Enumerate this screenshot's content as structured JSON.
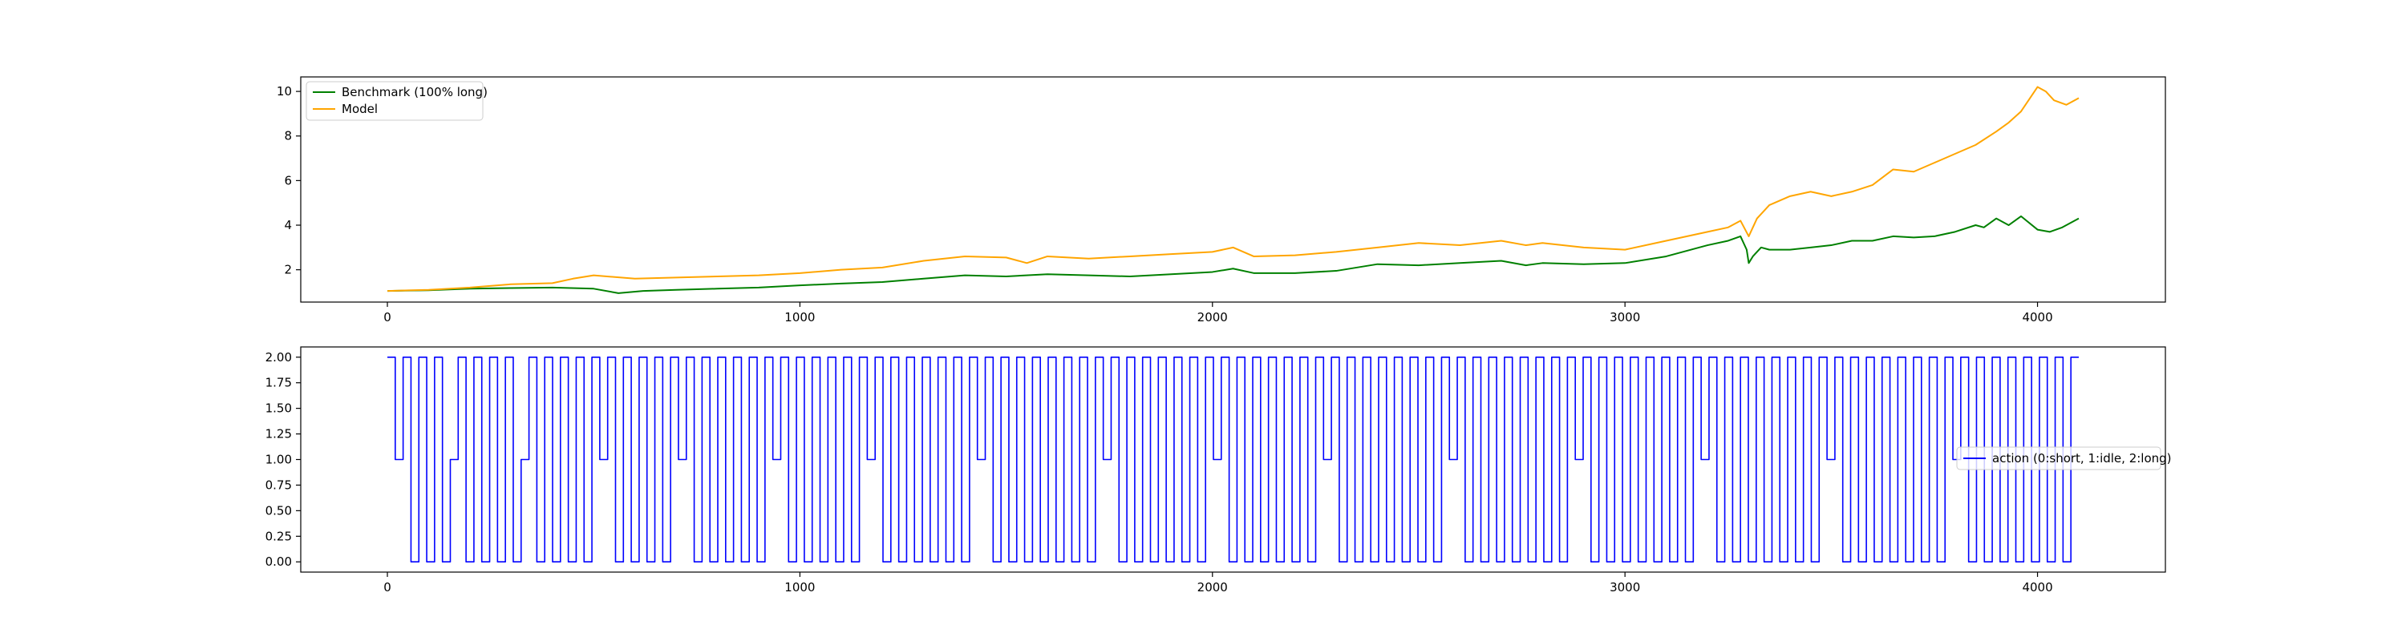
{
  "chart_data": [
    {
      "type": "line",
      "title": "",
      "xlabel": "",
      "ylabel": "",
      "xlim": [
        -210,
        4310
      ],
      "ylim": [
        0.55,
        10.65
      ],
      "xticks": [
        0,
        1000,
        2000,
        3000,
        4000
      ],
      "xtick_labels": [
        "0",
        "1000",
        "2000",
        "3000",
        "4000"
      ],
      "yticks": [
        2,
        4,
        6,
        8,
        10
      ],
      "ytick_labels": [
        "2",
        "4",
        "6",
        "8",
        "10"
      ],
      "grid": false,
      "legend_position": "upper left",
      "series": [
        {
          "name": "Benchmark (100% long)",
          "color": "#008000",
          "x": [
            0,
            100,
            200,
            300,
            400,
            500,
            560,
            620,
            700,
            800,
            900,
            1000,
            1100,
            1200,
            1300,
            1400,
            1500,
            1600,
            1700,
            1800,
            1900,
            2000,
            2050,
            2100,
            2200,
            2300,
            2400,
            2500,
            2600,
            2700,
            2760,
            2800,
            2900,
            3000,
            3100,
            3200,
            3250,
            3280,
            3295,
            3300,
            3310,
            3330,
            3350,
            3400,
            3450,
            3500,
            3550,
            3600,
            3650,
            3700,
            3750,
            3800,
            3850,
            3870,
            3900,
            3930,
            3960,
            4000,
            4030,
            4060,
            4100
          ],
          "values": [
            1.05,
            1.08,
            1.15,
            1.18,
            1.2,
            1.15,
            0.95,
            1.05,
            1.1,
            1.15,
            1.2,
            1.3,
            1.38,
            1.45,
            1.6,
            1.75,
            1.7,
            1.8,
            1.75,
            1.7,
            1.8,
            1.9,
            2.05,
            1.85,
            1.85,
            1.95,
            2.25,
            2.2,
            2.3,
            2.4,
            2.2,
            2.3,
            2.25,
            2.3,
            2.6,
            3.1,
            3.3,
            3.5,
            2.9,
            2.3,
            2.6,
            3.0,
            2.9,
            2.9,
            3.0,
            3.1,
            3.3,
            3.3,
            3.5,
            3.45,
            3.5,
            3.7,
            4.0,
            3.9,
            4.3,
            4.0,
            4.4,
            3.8,
            3.7,
            3.9,
            4.3
          ]
        },
        {
          "name": "Model",
          "color": "#FFA500",
          "x": [
            0,
            100,
            200,
            300,
            400,
            450,
            500,
            600,
            700,
            800,
            900,
            1000,
            1100,
            1200,
            1300,
            1400,
            1500,
            1550,
            1600,
            1700,
            1800,
            1900,
            2000,
            2050,
            2100,
            2200,
            2300,
            2400,
            2500,
            2600,
            2700,
            2760,
            2800,
            2900,
            3000,
            3100,
            3200,
            3250,
            3280,
            3300,
            3320,
            3350,
            3400,
            3450,
            3500,
            3550,
            3600,
            3650,
            3700,
            3750,
            3800,
            3850,
            3900,
            3930,
            3960,
            4000,
            4020,
            4040,
            4070,
            4100
          ],
          "values": [
            1.05,
            1.1,
            1.2,
            1.35,
            1.4,
            1.6,
            1.75,
            1.6,
            1.65,
            1.7,
            1.75,
            1.85,
            2.0,
            2.1,
            2.4,
            2.6,
            2.55,
            2.3,
            2.6,
            2.5,
            2.6,
            2.7,
            2.8,
            3.0,
            2.6,
            2.65,
            2.8,
            3.0,
            3.2,
            3.1,
            3.3,
            3.1,
            3.2,
            3.0,
            2.9,
            3.3,
            3.7,
            3.9,
            4.2,
            3.5,
            4.3,
            4.9,
            5.3,
            5.5,
            5.3,
            5.5,
            5.8,
            6.5,
            6.4,
            6.8,
            7.2,
            7.6,
            8.2,
            8.6,
            9.1,
            10.2,
            10.0,
            9.6,
            9.4,
            9.7
          ]
        }
      ]
    },
    {
      "type": "line",
      "title": "",
      "xlabel": "",
      "ylabel": "",
      "xlim": [
        -210,
        4310
      ],
      "ylim": [
        -0.1,
        2.1
      ],
      "xticks": [
        0,
        1000,
        2000,
        3000,
        4000
      ],
      "xtick_labels": [
        "0",
        "1000",
        "2000",
        "3000",
        "4000"
      ],
      "yticks": [
        0.0,
        0.25,
        0.5,
        0.75,
        1.0,
        1.25,
        1.5,
        1.75,
        2.0
      ],
      "ytick_labels": [
        "0.00",
        "0.25",
        "0.50",
        "0.75",
        "1.00",
        "1.25",
        "1.50",
        "1.75",
        "2.00"
      ],
      "grid": false,
      "legend_position": "center right",
      "step": true,
      "series": [
        {
          "name": "action (0:short, 1:idle, 2:long)",
          "color": "#0000FF",
          "x_start": 0,
          "x_end": 4100,
          "values": [
            2,
            1,
            2,
            0,
            2,
            0,
            2,
            0,
            1,
            2,
            0,
            2,
            0,
            2,
            0,
            2,
            0,
            1,
            2,
            0,
            2,
            0,
            2,
            0,
            2,
            0,
            2,
            1,
            2,
            0,
            2,
            0,
            2,
            0,
            2,
            0,
            2,
            1,
            2,
            0,
            2,
            0,
            2,
            0,
            2,
            0,
            2,
            0,
            2,
            1,
            2,
            0,
            2,
            0,
            2,
            0,
            2,
            0,
            2,
            0,
            2,
            1,
            2,
            0,
            2,
            0,
            2,
            0,
            2,
            0,
            2,
            0,
            2,
            0,
            2,
            1,
            2,
            0,
            2,
            0,
            2,
            0,
            2,
            0,
            2,
            0,
            2,
            0,
            2,
            0,
            2,
            1,
            2,
            0,
            2,
            0,
            2,
            0,
            2,
            0,
            2,
            0,
            2,
            0,
            2,
            1,
            2,
            0,
            2,
            0,
            2,
            0,
            2,
            0,
            2,
            0,
            2,
            0,
            2,
            1,
            2,
            0,
            2,
            0,
            2,
            0,
            2,
            0,
            2,
            0,
            2,
            0,
            2,
            0,
            2,
            1,
            2,
            0,
            2,
            0,
            2,
            0,
            2,
            0,
            2,
            0,
            2,
            0,
            2,
            0,
            2,
            1,
            2,
            0,
            2,
            0,
            2,
            0,
            2,
            0,
            2,
            0,
            2,
            0,
            2,
            0,
            2,
            1,
            2,
            0,
            2,
            0,
            2,
            0,
            2,
            0,
            2,
            0,
            2,
            0,
            2,
            0,
            2,
            1,
            2,
            0,
            2,
            0,
            2,
            0,
            2,
            0,
            2,
            0,
            2,
            0,
            2,
            0,
            2,
            1,
            2,
            0,
            2,
            0,
            2,
            0,
            2,
            0,
            2,
            0,
            2,
            0,
            2,
            0,
            2
          ]
        }
      ]
    }
  ]
}
